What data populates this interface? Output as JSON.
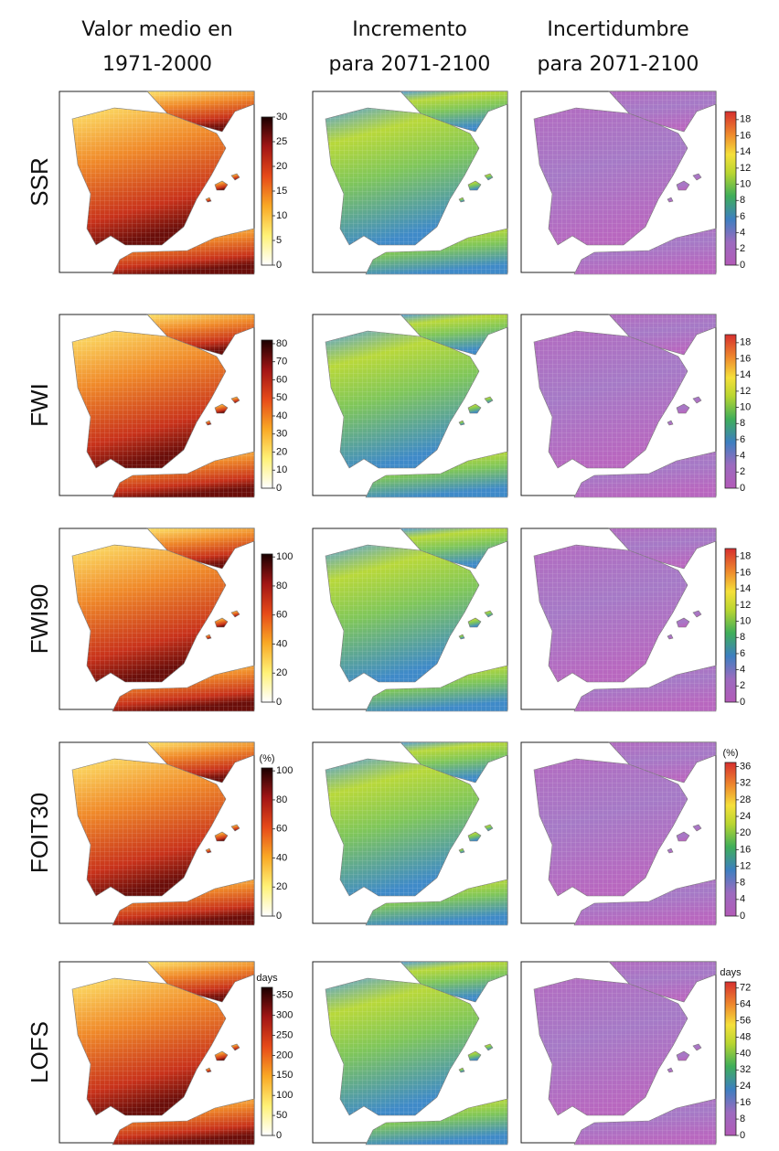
{
  "columns": [
    {
      "title": [
        "Valor medio en",
        "1971-2000"
      ]
    },
    {
      "title": [
        "Incremento",
        "para 2071-2100"
      ]
    },
    {
      "title": [
        "Incertidumbre",
        "para 2071-2100"
      ]
    }
  ],
  "rows": [
    {
      "label": "SSR",
      "left_colorbar": {
        "lim": [
          0,
          30
        ],
        "ticks": [
          0,
          5,
          10,
          15,
          20,
          25,
          30
        ]
      },
      "right_colorbar": {
        "lim": [
          0,
          19
        ],
        "ticks": [
          0,
          2,
          4,
          6,
          8,
          10,
          12,
          14,
          16,
          18
        ]
      }
    },
    {
      "label": "FWI",
      "left_colorbar": {
        "lim": [
          0,
          82
        ],
        "ticks": [
          0,
          10,
          20,
          30,
          40,
          50,
          60,
          70,
          80
        ]
      },
      "right_colorbar": {
        "lim": [
          0,
          19
        ],
        "ticks": [
          0,
          2,
          4,
          6,
          8,
          10,
          12,
          14,
          16,
          18
        ]
      }
    },
    {
      "label": "FWI90",
      "left_colorbar": {
        "lim": [
          0,
          102
        ],
        "ticks": [
          0,
          20,
          40,
          60,
          80,
          100
        ]
      },
      "right_colorbar": {
        "lim": [
          0,
          19
        ],
        "ticks": [
          0,
          2,
          4,
          6,
          8,
          10,
          12,
          14,
          16,
          18
        ]
      }
    },
    {
      "label": "FOIT30",
      "left_colorbar": {
        "unit": "(%)",
        "lim": [
          0,
          102
        ],
        "ticks": [
          0,
          20,
          40,
          60,
          80,
          100
        ]
      },
      "right_colorbar": {
        "unit": "(%)",
        "lim": [
          0,
          37
        ],
        "ticks": [
          0,
          4,
          8,
          12,
          16,
          20,
          24,
          28,
          32,
          36
        ]
      }
    },
    {
      "label": "LOFS",
      "left_colorbar": {
        "unit": "days",
        "lim": [
          0,
          370
        ],
        "ticks": [
          0,
          50,
          100,
          150,
          200,
          250,
          300,
          350
        ]
      },
      "right_colorbar": {
        "unit": "days",
        "lim": [
          0,
          75
        ],
        "ticks": [
          0,
          8,
          16,
          24,
          32,
          40,
          48,
          56,
          64,
          72
        ]
      }
    }
  ]
}
